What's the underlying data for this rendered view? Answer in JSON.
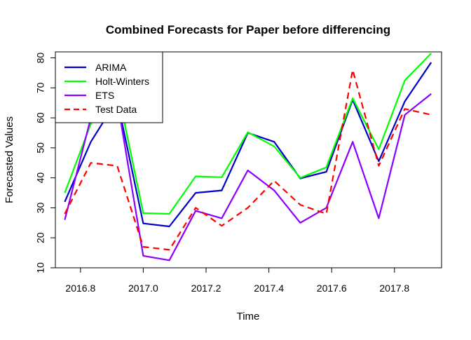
{
  "chart_data": {
    "type": "line",
    "title": "Combined Forecasts for Paper before differencing",
    "xlabel": "Time",
    "ylabel": "Forecasted Values",
    "xlim": [
      2016.72,
      2017.95
    ],
    "ylim": [
      10,
      82
    ],
    "x_ticks": [
      2016.8,
      2017.0,
      2017.2,
      2017.4,
      2017.6,
      2017.8
    ],
    "x_tick_labels": [
      "2016.8",
      "2017.0",
      "2017.2",
      "2017.4",
      "2017.6",
      "2017.8"
    ],
    "y_ticks": [
      10,
      20,
      30,
      40,
      50,
      60,
      70,
      80
    ],
    "y_tick_labels": [
      "10",
      "20",
      "30",
      "40",
      "50",
      "60",
      "70",
      "80"
    ],
    "grid": false,
    "legend_position": "top-left",
    "x": [
      2016.75,
      2016.833,
      2016.917,
      2017.0,
      2017.083,
      2017.167,
      2017.25,
      2017.333,
      2017.417,
      2017.5,
      2017.583,
      2017.667,
      2017.75,
      2017.833,
      2017.917
    ],
    "series": [
      {
        "name": "ARIMA",
        "color": "#0000cd",
        "dash": "solid",
        "values": [
          32,
          52,
          66,
          24.8,
          23.8,
          35,
          35.8,
          55,
          52,
          39.8,
          42,
          66,
          45.5,
          65.5,
          78.5
        ]
      },
      {
        "name": "Holt-Winters",
        "color": "#00ff00",
        "dash": "solid",
        "values": [
          35,
          58,
          70,
          28.2,
          28,
          40.5,
          40.2,
          55.2,
          50.5,
          40,
          43.5,
          66.5,
          49.5,
          72.5,
          81.5
        ]
      },
      {
        "name": "ETS",
        "color": "#8b00ff",
        "dash": "solid",
        "values": [
          26,
          60,
          66,
          14,
          12.5,
          29,
          26.5,
          42.5,
          35.8,
          25,
          30,
          52,
          26.5,
          61,
          68
        ]
      },
      {
        "name": "Test Data",
        "color": "#ff0000",
        "dash": "dashed",
        "values": [
          28,
          45,
          44,
          17,
          16,
          30,
          24,
          30,
          39,
          31,
          28,
          76,
          44,
          63,
          61
        ]
      }
    ]
  }
}
